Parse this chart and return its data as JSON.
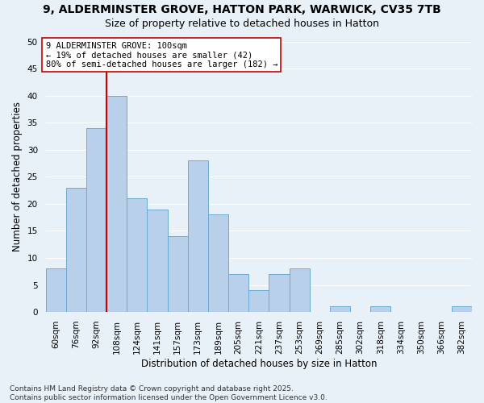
{
  "title1": "9, ALDERMINSTER GROVE, HATTON PARK, WARWICK, CV35 7TB",
  "title2": "Size of property relative to detached houses in Hatton",
  "xlabel": "Distribution of detached houses by size in Hatton",
  "ylabel": "Number of detached properties",
  "categories": [
    "60sqm",
    "76sqm",
    "92sqm",
    "108sqm",
    "124sqm",
    "141sqm",
    "157sqm",
    "173sqm",
    "189sqm",
    "205sqm",
    "221sqm",
    "237sqm",
    "253sqm",
    "269sqm",
    "285sqm",
    "302sqm",
    "318sqm",
    "334sqm",
    "350sqm",
    "366sqm",
    "382sqm"
  ],
  "values": [
    8,
    23,
    34,
    40,
    21,
    19,
    14,
    28,
    18,
    7,
    4,
    7,
    8,
    0,
    1,
    0,
    1,
    0,
    0,
    0,
    1
  ],
  "bar_color": "#b8d0ea",
  "bar_edge_color": "#6aaad4",
  "background_color": "#e8f0f8",
  "grid_color": "#ffffff",
  "annotation_line1": "9 ALDERMINSTER GROVE: 100sqm",
  "annotation_line2": "← 19% of detached houses are smaller (42)",
  "annotation_line3": "80% of semi-detached houses are larger (182) →",
  "annotation_box_color": "#ffffff",
  "annotation_box_edge_color": "#cc0000",
  "vline_x": 2.5,
  "vline_color": "#cc0000",
  "ylim": [
    0,
    50
  ],
  "yticks": [
    0,
    5,
    10,
    15,
    20,
    25,
    30,
    35,
    40,
    45,
    50
  ],
  "footer": "Contains HM Land Registry data © Crown copyright and database right 2025.\nContains public sector information licensed under the Open Government Licence v3.0.",
  "title_fontsize": 10,
  "subtitle_fontsize": 9,
  "axis_label_fontsize": 8.5,
  "tick_fontsize": 7.5,
  "annotation_fontsize": 7.5,
  "footer_fontsize": 6.5
}
